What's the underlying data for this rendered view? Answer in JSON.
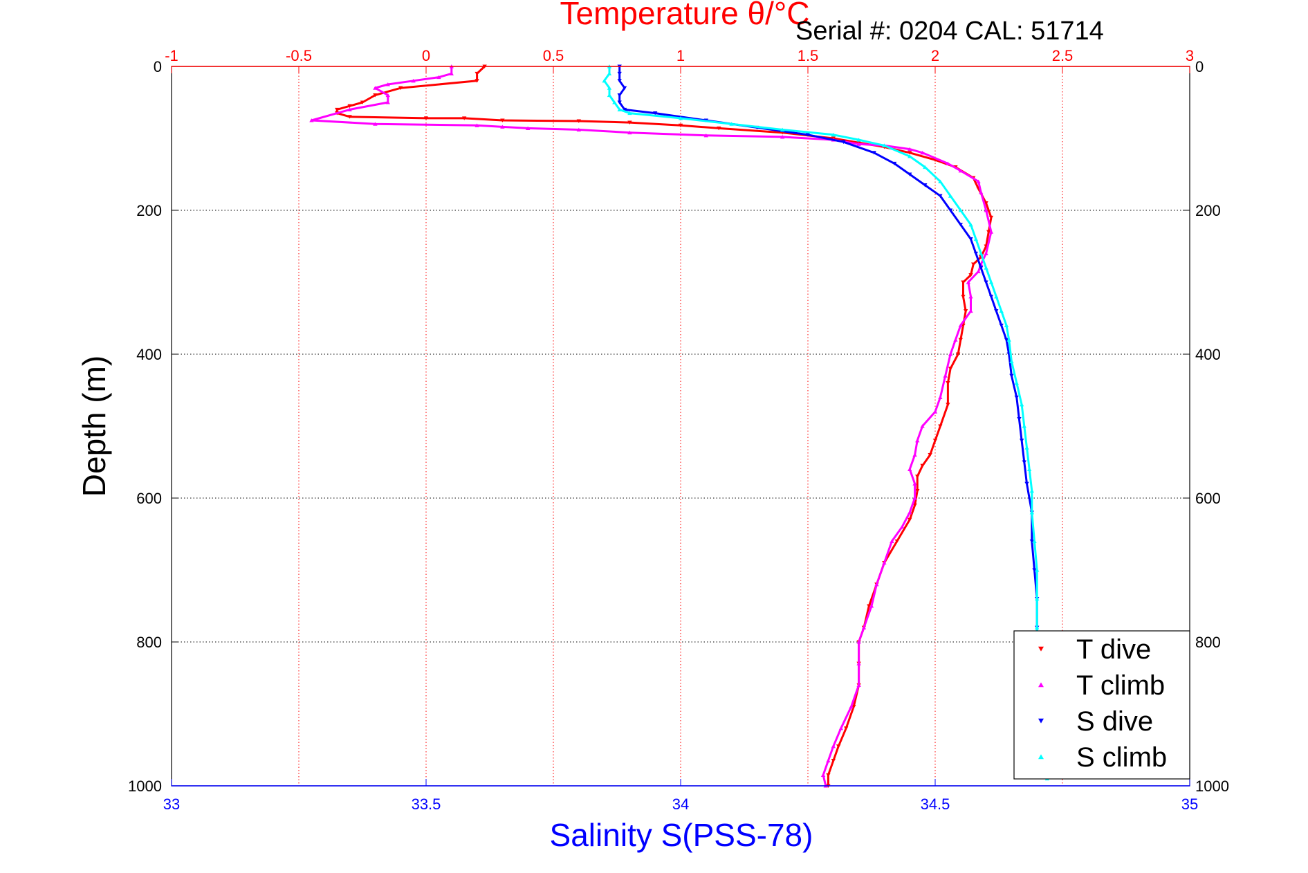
{
  "chart_data": {
    "type": "scatter",
    "title": "Temperature θ/°C",
    "subtitle": "Serial #: 0204  CAL: 51714",
    "ylabel": "Depth (m)",
    "xlabel": "Salinity S(PSS-78)",
    "x2label": "Temperature θ/°C",
    "y_ticks": [
      "0",
      "200",
      "400",
      "600",
      "800",
      "1000"
    ],
    "y_tick_values": [
      0,
      200,
      400,
      600,
      800,
      1000
    ],
    "ylim": [
      1000,
      0
    ],
    "salinity_ticks": [
      "33",
      "33.5",
      "34",
      "34.5",
      "35"
    ],
    "salinity_tick_values": [
      33,
      33.5,
      34,
      34.5,
      35
    ],
    "salinity_lim": [
      33,
      35
    ],
    "temperature_ticks": [
      "-1",
      "-0.5",
      "0",
      "0.5",
      "1",
      "1.5",
      "2",
      "2.5",
      "3"
    ],
    "temperature_tick_values": [
      -1,
      -0.5,
      0,
      0.5,
      1,
      1.5,
      2,
      2.5,
      3
    ],
    "temperature_lim": [
      -1,
      3
    ],
    "grid": true,
    "legend_position": "bottom-right",
    "colors": {
      "temperature_axis": "#ff0000",
      "salinity_axis": "#0000ff",
      "grid": "#000000",
      "t_dive": "#ff0000",
      "t_climb": "#ff00ff",
      "s_dive": "#0000ff",
      "s_climb": "#00ffff"
    },
    "series": [
      {
        "name": "T dive",
        "axis": "temperature",
        "marker": "triangle-down",
        "points": [
          [
            0.23,
            0
          ],
          [
            0.2,
            10
          ],
          [
            0.2,
            20
          ],
          [
            -0.1,
            30
          ],
          [
            -0.2,
            40
          ],
          [
            -0.25,
            50
          ],
          [
            -0.3,
            55
          ],
          [
            -0.35,
            60
          ],
          [
            -0.35,
            65
          ],
          [
            -0.3,
            70
          ],
          [
            0.0,
            72
          ],
          [
            0.15,
            72
          ],
          [
            0.3,
            75
          ],
          [
            0.6,
            76
          ],
          [
            0.8,
            78
          ],
          [
            1.0,
            82
          ],
          [
            1.15,
            86
          ],
          [
            1.4,
            92
          ],
          [
            1.6,
            100
          ],
          [
            1.7,
            106
          ],
          [
            1.8,
            112
          ],
          [
            1.9,
            120
          ],
          [
            2.0,
            130
          ],
          [
            2.08,
            140
          ],
          [
            2.15,
            155
          ],
          [
            2.17,
            170
          ],
          [
            2.2,
            190
          ],
          [
            2.22,
            210
          ],
          [
            2.21,
            230
          ],
          [
            2.2,
            250
          ],
          [
            2.18,
            265
          ],
          [
            2.15,
            275
          ],
          [
            2.14,
            290
          ],
          [
            2.11,
            300
          ],
          [
            2.11,
            320
          ],
          [
            2.12,
            340
          ],
          [
            2.11,
            360
          ],
          [
            2.1,
            380
          ],
          [
            2.09,
            400
          ],
          [
            2.06,
            420
          ],
          [
            2.05,
            440
          ],
          [
            2.05,
            470
          ],
          [
            2.02,
            500
          ],
          [
            2.0,
            520
          ],
          [
            1.98,
            540
          ],
          [
            1.95,
            555
          ],
          [
            1.93,
            570
          ],
          [
            1.93,
            590
          ],
          [
            1.92,
            610
          ],
          [
            1.9,
            630
          ],
          [
            1.85,
            660
          ],
          [
            1.8,
            690
          ],
          [
            1.77,
            720
          ],
          [
            1.74,
            750
          ],
          [
            1.72,
            780
          ],
          [
            1.7,
            800
          ],
          [
            1.7,
            830
          ],
          [
            1.7,
            860
          ],
          [
            1.68,
            890
          ],
          [
            1.65,
            920
          ],
          [
            1.62,
            945
          ],
          [
            1.6,
            965
          ],
          [
            1.58,
            985
          ],
          [
            1.58,
            1000
          ]
        ]
      },
      {
        "name": "T climb",
        "axis": "temperature",
        "marker": "triangle-up",
        "points": [
          [
            0.1,
            0
          ],
          [
            0.1,
            10
          ],
          [
            0.05,
            15
          ],
          [
            -0.05,
            20
          ],
          [
            -0.15,
            25
          ],
          [
            -0.2,
            30
          ],
          [
            -0.15,
            40
          ],
          [
            -0.15,
            50
          ],
          [
            -0.3,
            60
          ],
          [
            -0.45,
            75
          ],
          [
            -0.2,
            80
          ],
          [
            0.2,
            82
          ],
          [
            0.3,
            84
          ],
          [
            0.4,
            86
          ],
          [
            0.6,
            88
          ],
          [
            0.8,
            92
          ],
          [
            1.1,
            96
          ],
          [
            1.4,
            98
          ],
          [
            1.6,
            102
          ],
          [
            1.7,
            108
          ],
          [
            1.8,
            110
          ],
          [
            1.9,
            115
          ],
          [
            1.95,
            120
          ],
          [
            2.05,
            135
          ],
          [
            2.1,
            145
          ],
          [
            2.17,
            160
          ],
          [
            2.18,
            175
          ],
          [
            2.2,
            200
          ],
          [
            2.22,
            230
          ],
          [
            2.2,
            260
          ],
          [
            2.18,
            275
          ],
          [
            2.17,
            285
          ],
          [
            2.13,
            300
          ],
          [
            2.14,
            320
          ],
          [
            2.14,
            340
          ],
          [
            2.1,
            360
          ],
          [
            2.08,
            380
          ],
          [
            2.06,
            400
          ],
          [
            2.04,
            430
          ],
          [
            2.02,
            460
          ],
          [
            2.0,
            480
          ],
          [
            1.95,
            500
          ],
          [
            1.93,
            520
          ],
          [
            1.92,
            540
          ],
          [
            1.9,
            560
          ],
          [
            1.92,
            580
          ],
          [
            1.92,
            600
          ],
          [
            1.9,
            620
          ],
          [
            1.87,
            640
          ],
          [
            1.83,
            660
          ],
          [
            1.8,
            690
          ],
          [
            1.77,
            720
          ],
          [
            1.75,
            750
          ],
          [
            1.72,
            780
          ],
          [
            1.7,
            800
          ],
          [
            1.7,
            830
          ],
          [
            1.7,
            860
          ],
          [
            1.67,
            890
          ],
          [
            1.63,
            920
          ],
          [
            1.6,
            945
          ],
          [
            1.58,
            965
          ],
          [
            1.56,
            985
          ],
          [
            1.57,
            1000
          ]
        ]
      },
      {
        "name": "S dive",
        "axis": "salinity",
        "marker": "triangle-down",
        "points": [
          [
            33.88,
            0
          ],
          [
            33.88,
            10
          ],
          [
            33.88,
            20
          ],
          [
            33.89,
            30
          ],
          [
            33.88,
            40
          ],
          [
            33.88,
            50
          ],
          [
            33.89,
            60
          ],
          [
            33.95,
            65
          ],
          [
            34.05,
            75
          ],
          [
            34.15,
            85
          ],
          [
            34.25,
            95
          ],
          [
            34.32,
            105
          ],
          [
            34.38,
            120
          ],
          [
            34.42,
            135
          ],
          [
            34.45,
            150
          ],
          [
            34.48,
            165
          ],
          [
            34.51,
            180
          ],
          [
            34.53,
            200
          ],
          [
            34.55,
            220
          ],
          [
            34.57,
            240
          ],
          [
            34.58,
            260
          ],
          [
            34.59,
            280
          ],
          [
            34.6,
            300
          ],
          [
            34.61,
            320
          ],
          [
            34.62,
            340
          ],
          [
            34.63,
            360
          ],
          [
            34.64,
            380
          ],
          [
            34.645,
            400
          ],
          [
            34.65,
            430
          ],
          [
            34.66,
            460
          ],
          [
            34.665,
            490
          ],
          [
            34.67,
            520
          ],
          [
            34.675,
            550
          ],
          [
            34.68,
            580
          ],
          [
            34.69,
            620
          ],
          [
            34.69,
            660
          ],
          [
            34.695,
            700
          ],
          [
            34.7,
            740
          ],
          [
            34.7,
            780
          ],
          [
            34.7,
            800
          ]
        ]
      },
      {
        "name": "S climb",
        "axis": "salinity",
        "marker": "triangle-up",
        "points": [
          [
            33.86,
            0
          ],
          [
            33.86,
            10
          ],
          [
            33.85,
            20
          ],
          [
            33.86,
            30
          ],
          [
            33.86,
            40
          ],
          [
            33.87,
            50
          ],
          [
            33.88,
            60
          ],
          [
            33.9,
            65
          ],
          [
            34.0,
            72
          ],
          [
            34.1,
            80
          ],
          [
            34.2,
            88
          ],
          [
            34.3,
            95
          ],
          [
            34.35,
            102
          ],
          [
            34.4,
            110
          ],
          [
            34.45,
            125
          ],
          [
            34.48,
            140
          ],
          [
            34.51,
            160
          ],
          [
            34.53,
            180
          ],
          [
            34.55,
            200
          ],
          [
            34.57,
            220
          ],
          [
            34.58,
            240
          ],
          [
            34.59,
            260
          ],
          [
            34.6,
            280
          ],
          [
            34.61,
            300
          ],
          [
            34.62,
            320
          ],
          [
            34.63,
            340
          ],
          [
            34.64,
            360
          ],
          [
            34.645,
            380
          ],
          [
            34.65,
            410
          ],
          [
            34.66,
            440
          ],
          [
            34.67,
            470
          ],
          [
            34.675,
            500
          ],
          [
            34.68,
            530
          ],
          [
            34.685,
            560
          ],
          [
            34.69,
            590
          ],
          [
            34.69,
            620
          ],
          [
            34.695,
            660
          ],
          [
            34.7,
            700
          ],
          [
            34.7,
            740
          ],
          [
            34.7,
            780
          ],
          [
            34.7,
            800
          ],
          [
            34.71,
            850
          ],
          [
            34.71,
            900
          ],
          [
            34.72,
            950
          ],
          [
            34.72,
            990
          ]
        ]
      }
    ],
    "legend": [
      {
        "label": "T dive",
        "color": "#ff0000",
        "marker": "triangle-down"
      },
      {
        "label": "T climb",
        "color": "#ff00ff",
        "marker": "triangle-up"
      },
      {
        "label": "S dive",
        "color": "#0000ff",
        "marker": "triangle-down"
      },
      {
        "label": "S climb",
        "color": "#00ffff",
        "marker": "triangle-up"
      }
    ]
  }
}
